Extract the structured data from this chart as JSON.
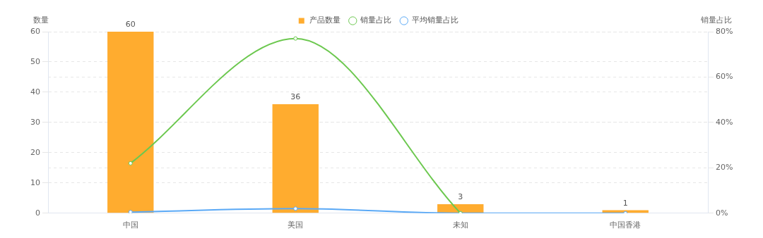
{
  "chart_data": {
    "type": "bar",
    "categories": [
      "中国",
      "美国",
      "未知",
      "中国香港"
    ],
    "ylabel": "数量",
    "y2label": "销量占比",
    "series": [
      {
        "name": "产品数量",
        "color": "#ffac2f",
        "values": [
          60,
          36,
          3,
          1
        ],
        "value_labels": [
          "60",
          "36",
          "3",
          "1"
        ]
      },
      {
        "name": "销量占比",
        "type": "line",
        "axis": "y2",
        "color": "#6cc84f",
        "values": [
          22,
          77,
          0,
          null
        ]
      },
      {
        "name": "平均销量占比",
        "type": "line",
        "axis": "y2",
        "color": "#5aa9f6",
        "values": [
          0.5,
          2,
          0,
          0
        ]
      }
    ],
    "ylim": [
      0,
      60
    ],
    "yticks": [
      0,
      10,
      20,
      30,
      40,
      50,
      60
    ],
    "y2lim": [
      0,
      80
    ],
    "y2ticks": [
      {
        "value": 0,
        "label": "0%"
      },
      {
        "value": 20,
        "label": "20%"
      },
      {
        "value": 40,
        "label": "40%"
      },
      {
        "value": 60,
        "label": "60%"
      },
      {
        "value": 80,
        "label": "80%"
      }
    ],
    "grid": true,
    "legend": "top",
    "marker": "circle",
    "line_style": "solid"
  }
}
